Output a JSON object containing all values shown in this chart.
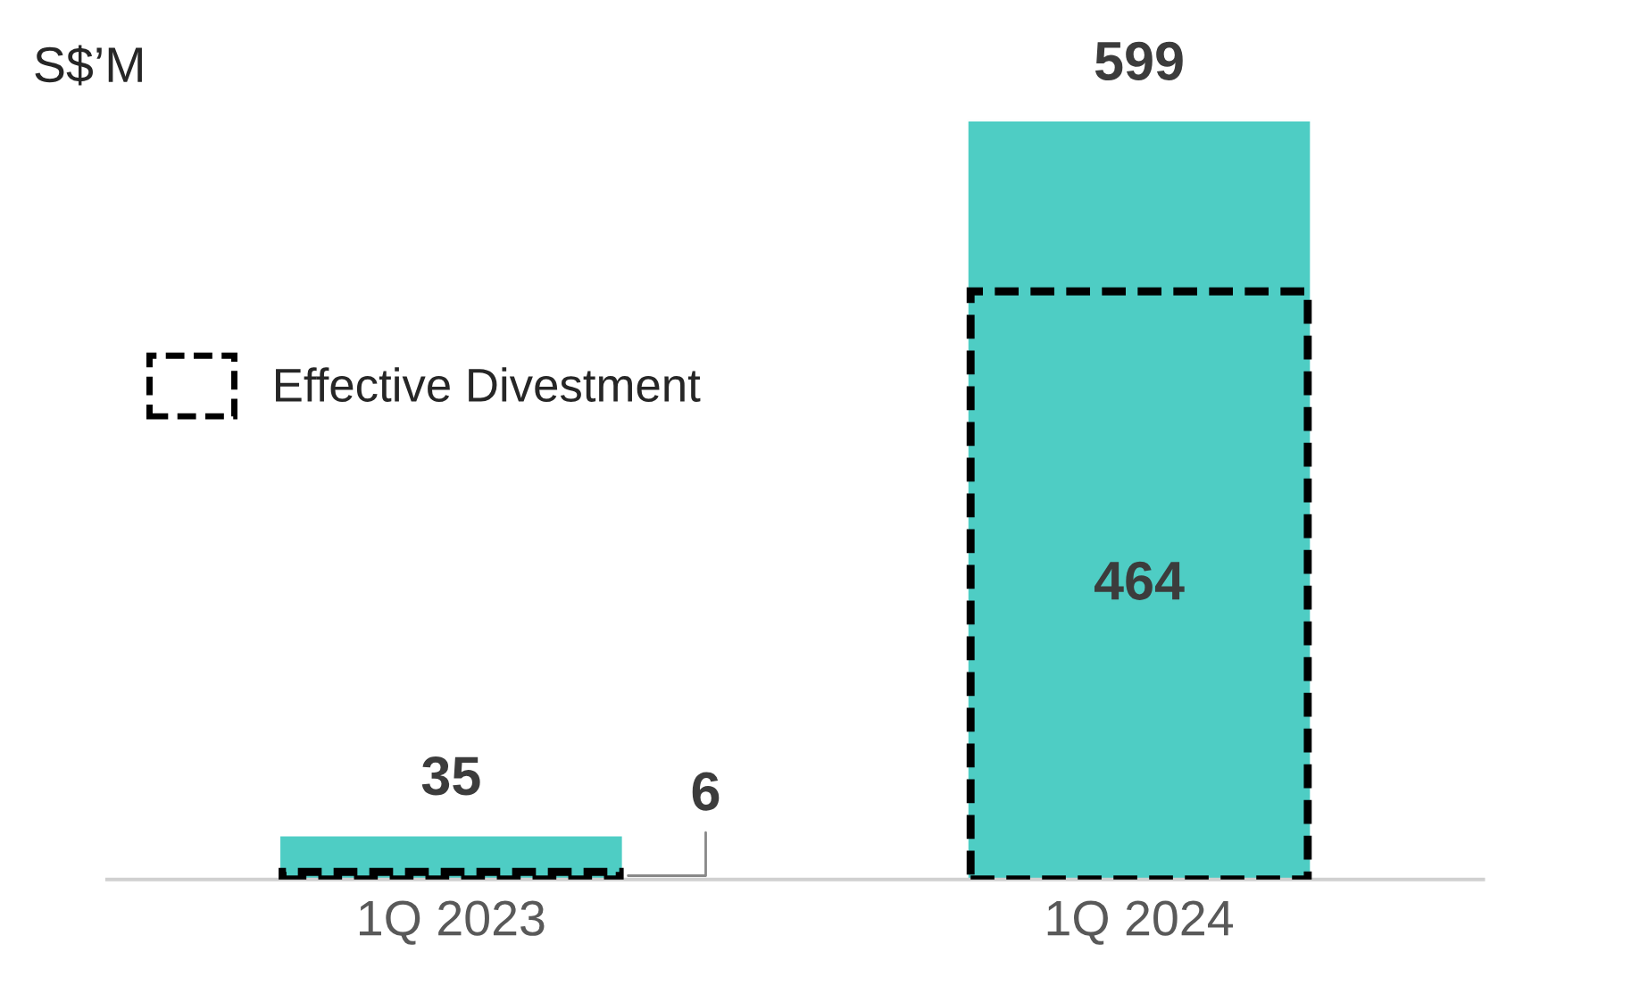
{
  "chart_data": {
    "type": "bar",
    "ylabel": "S$’M",
    "categories": [
      "1Q 2023",
      "1Q 2024"
    ],
    "series": [
      {
        "color": "#4ecdc4",
        "values": [
          35,
          599
        ]
      },
      {
        "name": "Effective Divestment",
        "color": "#000000",
        "values": [
          6,
          464
        ],
        "line_style": "dashed"
      }
    ],
    "data_labels": true,
    "legend": "left",
    "grid": false
  }
}
